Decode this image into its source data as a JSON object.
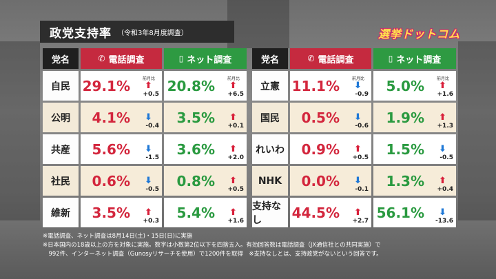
{
  "title": "政党支持率",
  "subtitle": "（令和3年8月度調査）",
  "logo": "選挙ドットコム",
  "headers": {
    "party": "党名",
    "phone": "電話調査",
    "net": "ネット調査"
  },
  "change_label": "前月比",
  "left_rows": [
    {
      "party": "自民",
      "phone": "29.1%",
      "phone_dir": "up",
      "phone_chg": "+0.5",
      "net": "20.8%",
      "net_dir": "up",
      "net_chg": "+6.5"
    },
    {
      "party": "公明",
      "phone": "4.1%",
      "phone_dir": "down",
      "phone_chg": "-0.4",
      "net": "3.5%",
      "net_dir": "up",
      "net_chg": "+0.1"
    },
    {
      "party": "共産",
      "phone": "5.6%",
      "phone_dir": "down",
      "phone_chg": "-1.5",
      "net": "3.6%",
      "net_dir": "up",
      "net_chg": "+2.0"
    },
    {
      "party": "社民",
      "phone": "0.6%",
      "phone_dir": "down",
      "phone_chg": "-0.5",
      "net": "0.8%",
      "net_dir": "up",
      "net_chg": "+0.5"
    },
    {
      "party": "維新",
      "phone": "3.5%",
      "phone_dir": "up",
      "phone_chg": "+0.3",
      "net": "5.4%",
      "net_dir": "up",
      "net_chg": "+1.6"
    }
  ],
  "right_rows": [
    {
      "party": "立憲",
      "phone": "11.1%",
      "phone_dir": "down",
      "phone_chg": "-0.9",
      "net": "5.0%",
      "net_dir": "up",
      "net_chg": "+1.6"
    },
    {
      "party": "国民",
      "phone": "0.5%",
      "phone_dir": "down",
      "phone_chg": "-0.6",
      "net": "1.9%",
      "net_dir": "up",
      "net_chg": "+1.3"
    },
    {
      "party": "れいわ",
      "phone": "0.9%",
      "phone_dir": "up",
      "phone_chg": "+0.5",
      "net": "1.5%",
      "net_dir": "down",
      "net_chg": "-0.5"
    },
    {
      "party": "NHK",
      "phone": "0.0%",
      "phone_dir": "down",
      "phone_chg": "-0.1",
      "net": "1.3%",
      "net_dir": "up",
      "net_chg": "+0.4"
    },
    {
      "party": "支持なし",
      "phone": "44.5%",
      "phone_dir": "up",
      "phone_chg": "+2.7",
      "net": "56.1%",
      "net_dir": "down",
      "net_chg": "-13.6"
    }
  ],
  "notes": [
    "※電話調査、ネット調査は8月14日(土)・15日(日)に実施",
    "※日本国内の18歳以上の方を対象に実施。数字は小数第2位以下を四捨五入。有効回答数は電話調査（JX通信社との共同実施）で",
    "　992件、インターネット調査（Gunosyリサーチを使用）で1200件を取得　※支持なしとは、支持政党がないという回答です。"
  ],
  "colors": {
    "phone": "#c52a3f",
    "net": "#2e9a42",
    "up_arrow": "#d8203a",
    "down_arrow": "#1f78d6"
  },
  "icons": {
    "phone_header": "phone-icon",
    "net_header": "smartphone-chat-icon"
  }
}
